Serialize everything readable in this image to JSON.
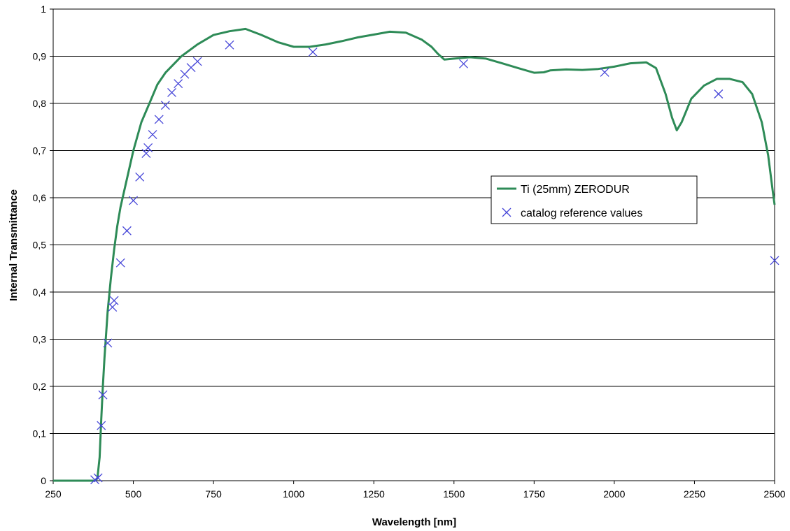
{
  "chart_data": {
    "type": "scatter",
    "title": "",
    "xlabel": "Wavelength [nm]",
    "ylabel": "Internal Transmittance",
    "xlim": [
      250,
      2500
    ],
    "ylim": [
      0,
      1
    ],
    "x_ticks": [
      250,
      500,
      750,
      1000,
      1250,
      1500,
      1750,
      2000,
      2250,
      2500
    ],
    "y_ticks": [
      0,
      0.1,
      0.2,
      0.3,
      0.4,
      0.5,
      0.6,
      0.7,
      0.8,
      0.9,
      1
    ],
    "y_tick_labels": [
      "0",
      "0,1",
      "0,2",
      "0,3",
      "0,4",
      "0,5",
      "0,6",
      "0,7",
      "0,8",
      "0,9",
      "1"
    ],
    "grid": "horizontal major gridlines",
    "legend_position": "center-right",
    "series": [
      {
        "name": "Ti (25mm) ZERODUR",
        "kind": "line",
        "color": "#2e8b57",
        "points": [
          [
            250,
            0
          ],
          [
            300,
            0
          ],
          [
            350,
            0
          ],
          [
            380,
            0
          ],
          [
            388,
            0.005
          ],
          [
            395,
            0.05
          ],
          [
            400,
            0.13
          ],
          [
            405,
            0.2
          ],
          [
            410,
            0.26
          ],
          [
            420,
            0.36
          ],
          [
            430,
            0.43
          ],
          [
            440,
            0.49
          ],
          [
            450,
            0.54
          ],
          [
            460,
            0.58
          ],
          [
            480,
            0.64
          ],
          [
            500,
            0.7
          ],
          [
            525,
            0.76
          ],
          [
            550,
            0.8
          ],
          [
            575,
            0.84
          ],
          [
            600,
            0.865
          ],
          [
            650,
            0.9
          ],
          [
            700,
            0.925
          ],
          [
            750,
            0.945
          ],
          [
            800,
            0.953
          ],
          [
            850,
            0.958
          ],
          [
            900,
            0.945
          ],
          [
            950,
            0.93
          ],
          [
            1000,
            0.92
          ],
          [
            1050,
            0.92
          ],
          [
            1100,
            0.925
          ],
          [
            1150,
            0.932
          ],
          [
            1200,
            0.94
          ],
          [
            1250,
            0.946
          ],
          [
            1300,
            0.952
          ],
          [
            1350,
            0.95
          ],
          [
            1400,
            0.935
          ],
          [
            1430,
            0.92
          ],
          [
            1450,
            0.905
          ],
          [
            1470,
            0.893
          ],
          [
            1500,
            0.895
          ],
          [
            1550,
            0.898
          ],
          [
            1600,
            0.895
          ],
          [
            1650,
            0.885
          ],
          [
            1700,
            0.875
          ],
          [
            1750,
            0.865
          ],
          [
            1780,
            0.866
          ],
          [
            1800,
            0.87
          ],
          [
            1850,
            0.872
          ],
          [
            1900,
            0.871
          ],
          [
            1950,
            0.873
          ],
          [
            2000,
            0.878
          ],
          [
            2050,
            0.885
          ],
          [
            2100,
            0.887
          ],
          [
            2130,
            0.875
          ],
          [
            2160,
            0.82
          ],
          [
            2180,
            0.77
          ],
          [
            2195,
            0.743
          ],
          [
            2210,
            0.76
          ],
          [
            2240,
            0.81
          ],
          [
            2280,
            0.838
          ],
          [
            2320,
            0.852
          ],
          [
            2360,
            0.852
          ],
          [
            2400,
            0.845
          ],
          [
            2430,
            0.82
          ],
          [
            2460,
            0.76
          ],
          [
            2480,
            0.69
          ],
          [
            2495,
            0.61
          ],
          [
            2500,
            0.585
          ]
        ]
      },
      {
        "name": "catalog reference values",
        "kind": "scatter",
        "marker": "x",
        "color": "#4646d8",
        "points": [
          [
            380,
            0.002
          ],
          [
            390,
            0.006
          ],
          [
            400,
            0.117
          ],
          [
            405,
            0.182
          ],
          [
            420,
            0.292
          ],
          [
            435,
            0.368
          ],
          [
            440,
            0.382
          ],
          [
            460,
            0.462
          ],
          [
            480,
            0.53
          ],
          [
            500,
            0.594
          ],
          [
            520,
            0.644
          ],
          [
            540,
            0.694
          ],
          [
            546,
            0.706
          ],
          [
            560,
            0.734
          ],
          [
            580,
            0.766
          ],
          [
            600,
            0.796
          ],
          [
            620,
            0.823
          ],
          [
            640,
            0.842
          ],
          [
            660,
            0.862
          ],
          [
            680,
            0.876
          ],
          [
            700,
            0.889
          ],
          [
            800,
            0.924
          ],
          [
            1060,
            0.909
          ],
          [
            1530,
            0.884
          ],
          [
            1970,
            0.866
          ],
          [
            2325,
            0.82
          ],
          [
            2500,
            0.467
          ]
        ]
      }
    ]
  }
}
